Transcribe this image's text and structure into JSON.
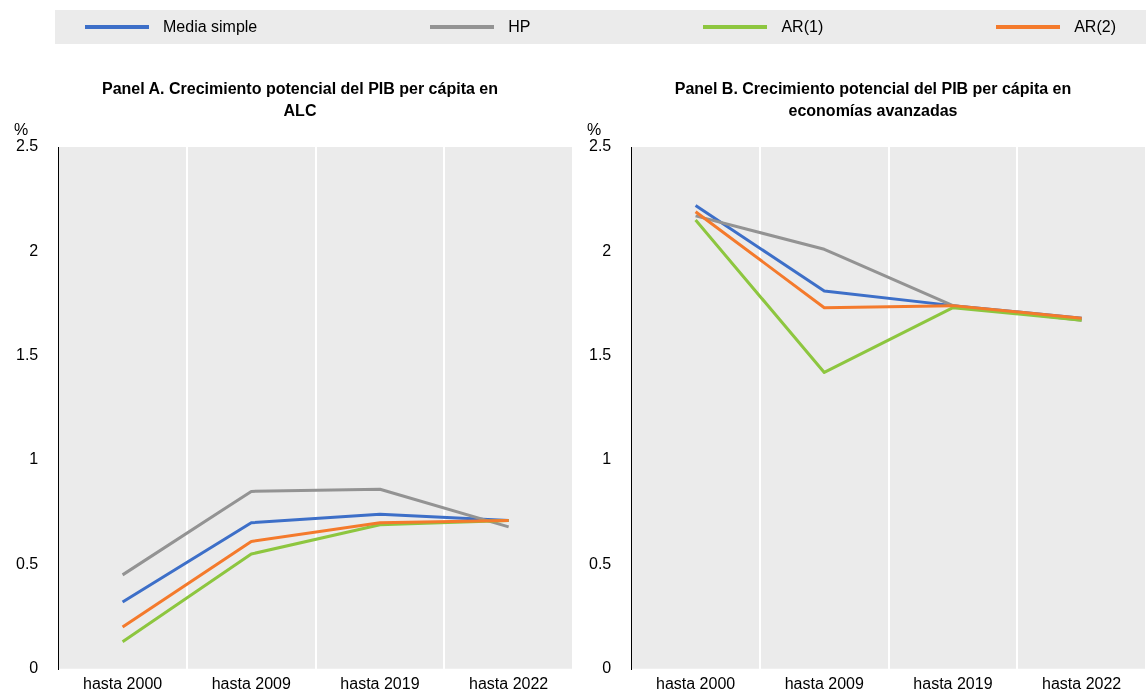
{
  "chart_data": [
    {
      "type": "line",
      "title": "Panel A. Crecimiento potencial del PIB per cápita en ALC",
      "ylabel": "%",
      "categories": [
        "hasta 2000",
        "hasta 2009",
        "hasta 2019",
        "hasta 2022"
      ],
      "series": [
        {
          "name": "Media simple",
          "color": "#3d6fc8",
          "values": [
            0.32,
            0.7,
            0.74,
            0.71
          ]
        },
        {
          "name": "HP",
          "color": "#939393",
          "values": [
            0.45,
            0.85,
            0.86,
            0.68
          ]
        },
        {
          "name": "AR(1)",
          "color": "#8dc63f",
          "values": [
            0.13,
            0.55,
            0.69,
            0.71
          ]
        },
        {
          "name": "AR(2)",
          "color": "#f47a2c",
          "values": [
            0.2,
            0.61,
            0.7,
            0.71
          ]
        }
      ],
      "ylim": [
        0,
        2.5
      ],
      "yticks": [
        0,
        0.5,
        1,
        1.5,
        2,
        2.5
      ],
      "grid": "x",
      "legend": "top",
      "marker": "none"
    },
    {
      "type": "line",
      "title": "Panel B. Crecimiento potencial del PIB per cápita en economías avanzadas",
      "ylabel": "%",
      "categories": [
        "hasta 2000",
        "hasta 2009",
        "hasta 2019",
        "hasta 2022"
      ],
      "series": [
        {
          "name": "Media simple",
          "color": "#3d6fc8",
          "values": [
            2.22,
            1.81,
            1.74,
            1.68
          ]
        },
        {
          "name": "HP",
          "color": "#939393",
          "values": [
            2.17,
            2.01,
            1.74,
            1.67
          ]
        },
        {
          "name": "AR(1)",
          "color": "#8dc63f",
          "values": [
            2.15,
            1.42,
            1.73,
            1.67
          ]
        },
        {
          "name": "AR(2)",
          "color": "#f47a2c",
          "values": [
            2.19,
            1.73,
            1.74,
            1.68
          ]
        }
      ],
      "ylim": [
        0,
        2.5
      ],
      "yticks": [
        0,
        0.5,
        1,
        1.5,
        2,
        2.5
      ],
      "grid": "x",
      "legend": "top",
      "marker": "none"
    }
  ]
}
